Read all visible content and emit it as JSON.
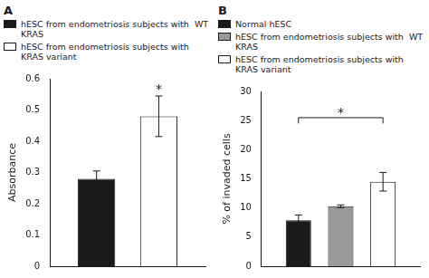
{
  "chart_data": [
    {
      "type": "bar",
      "title": "A",
      "categories": [
        null
      ],
      "series": [
        {
          "name": "hESC from endometriosis subjects with  WT KRAS",
          "color": "#1a1a1a",
          "values": [
            0.28
          ],
          "error": [
            0.025
          ]
        },
        {
          "name": "hESC from endometriosis subjects with  KRAS variant",
          "color": "#ffffff",
          "values": [
            0.48
          ],
          "error": [
            0.065
          ]
        }
      ],
      "ylabel": "Absorbance",
      "ylim": [
        0,
        0.6
      ],
      "yticks": [
        0,
        0.1,
        0.2,
        0.3,
        0.4,
        0.5,
        0.6
      ],
      "grid": false,
      "legend": "top",
      "tick_labels": "y",
      "annotations": [
        {
          "text": "*",
          "from": 1,
          "to": 1,
          "y": 0.555
        }
      ]
    },
    {
      "type": "bar",
      "title": "B",
      "categories": [
        null
      ],
      "series": [
        {
          "name": "Normal hESC",
          "color": "#1a1a1a",
          "values": [
            7.9
          ],
          "error": [
            0.9
          ]
        },
        {
          "name": "hESC from endometriosis subjects with  WT KRAS",
          "color": "#999999",
          "values": [
            10.3
          ],
          "error": [
            0.22
          ]
        },
        {
          "name": "hESC from endometriosis subjects with  KRAS variant",
          "color": "#ffffff",
          "values": [
            14.5
          ],
          "error": [
            1.6
          ]
        }
      ],
      "ylabel": "% of invaded cells",
      "ylim": [
        0,
        30
      ],
      "yticks": [
        0,
        5,
        10,
        15,
        20,
        25,
        30
      ],
      "grid": false,
      "legend": "top",
      "tick_labels": "y",
      "brackets": [
        {
          "from": 0,
          "to": 2,
          "y": 25.5,
          "drop": 1.0
        }
      ],
      "annotations": [
        {
          "text": "*",
          "from": 0,
          "to": 2,
          "y": 25.7
        }
      ]
    }
  ]
}
